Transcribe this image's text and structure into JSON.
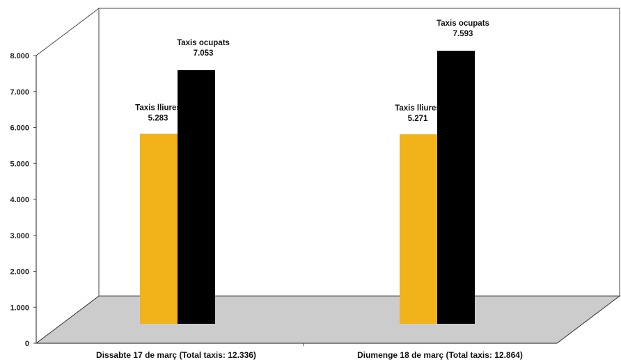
{
  "chart_data": {
    "type": "bar",
    "categories": [
      "Dissabte 17 de març (Total taxis: 12.336)",
      "Diumenge 18 de març (Total taxis: 12.864)"
    ],
    "series": [
      {
        "name": "Taxis lliures",
        "values": [
          5283,
          5271
        ],
        "value_labels": [
          "5.283",
          "5.271"
        ],
        "color": "#f1b21a"
      },
      {
        "name": "Taxis ocupats",
        "values": [
          7053,
          7593
        ],
        "value_labels": [
          "7.053",
          "7.593"
        ],
        "color": "#000000"
      }
    ],
    "yticks": [
      0,
      1000,
      2000,
      3000,
      4000,
      5000,
      6000,
      7000,
      8000
    ],
    "ytick_labels": [
      "0",
      "1.000",
      "2.000",
      "3.000",
      "4.000",
      "5.000",
      "6.000",
      "7.000",
      "8.000"
    ],
    "ylim": [
      0,
      8000
    ],
    "title": "",
    "xlabel": "",
    "ylabel": "",
    "grid": false,
    "style": "3d-box",
    "floor_color": "#cccccc"
  }
}
